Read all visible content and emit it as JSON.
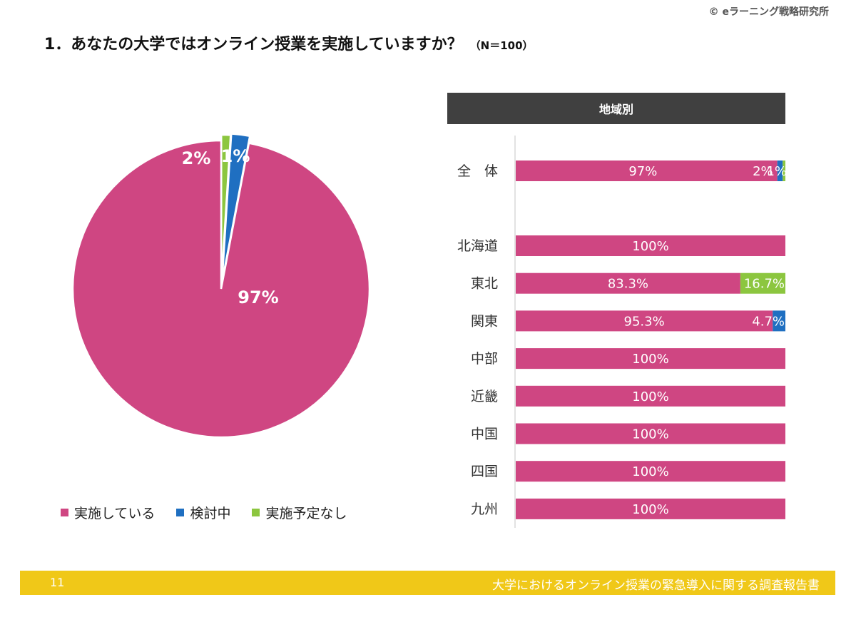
{
  "copyright": "© eラーニング戦略研究所",
  "title": "1．あなたの大学ではオンライン授業を実施していますか？",
  "title_n": "（N＝100）",
  "colors": {
    "implemented": "#cf4682",
    "considering": "#1f6fc1",
    "no_plan": "#8cc63f",
    "header_bg": "#404040",
    "footer_bg": "#f0c818"
  },
  "legend": [
    {
      "label": "実施している",
      "color": "#cf4682"
    },
    {
      "label": "検討中",
      "color": "#1f6fc1"
    },
    {
      "label": "実施予定なし",
      "color": "#8cc63f"
    }
  ],
  "region_header": "地域別",
  "footer": {
    "page_number": "11",
    "report_title": "大学におけるオンライン授業の緊急導入に関する調査報告書"
  },
  "chart_data": [
    {
      "type": "pie",
      "categories": [
        "実施している",
        "検討中",
        "実施予定なし"
      ],
      "values": [
        97,
        2,
        1
      ],
      "labels": [
        "97%",
        "2%",
        "1%"
      ],
      "legend_position": "bottom"
    },
    {
      "type": "bar",
      "orientation": "horizontal",
      "stacked": true,
      "percent": true,
      "categories": [
        "全　体",
        "北海道",
        "東北",
        "関東",
        "中部",
        "近畿",
        "中国",
        "四国",
        "九州"
      ],
      "gap_after_first": true,
      "series": [
        {
          "name": "実施している",
          "values": [
            97,
            100,
            83.3,
            95.3,
            100,
            100,
            100,
            100,
            100
          ],
          "labels": [
            "97%",
            "100%",
            "83.3%",
            "95.3%",
            "100%",
            "100%",
            "100%",
            "100%",
            "100%"
          ]
        },
        {
          "name": "検討中",
          "values": [
            2,
            0,
            0,
            4.7,
            0,
            0,
            0,
            0,
            0
          ],
          "labels": [
            "2%",
            "",
            "",
            "4.7%",
            "",
            "",
            "",
            "",
            ""
          ]
        },
        {
          "name": "実施予定なし",
          "values": [
            1,
            0,
            16.7,
            0,
            0,
            0,
            0,
            0,
            0
          ],
          "labels": [
            "1%",
            "",
            "16.7%",
            "",
            "",
            "",
            "",
            "",
            ""
          ]
        }
      ],
      "xlim": [
        0,
        100
      ]
    }
  ]
}
